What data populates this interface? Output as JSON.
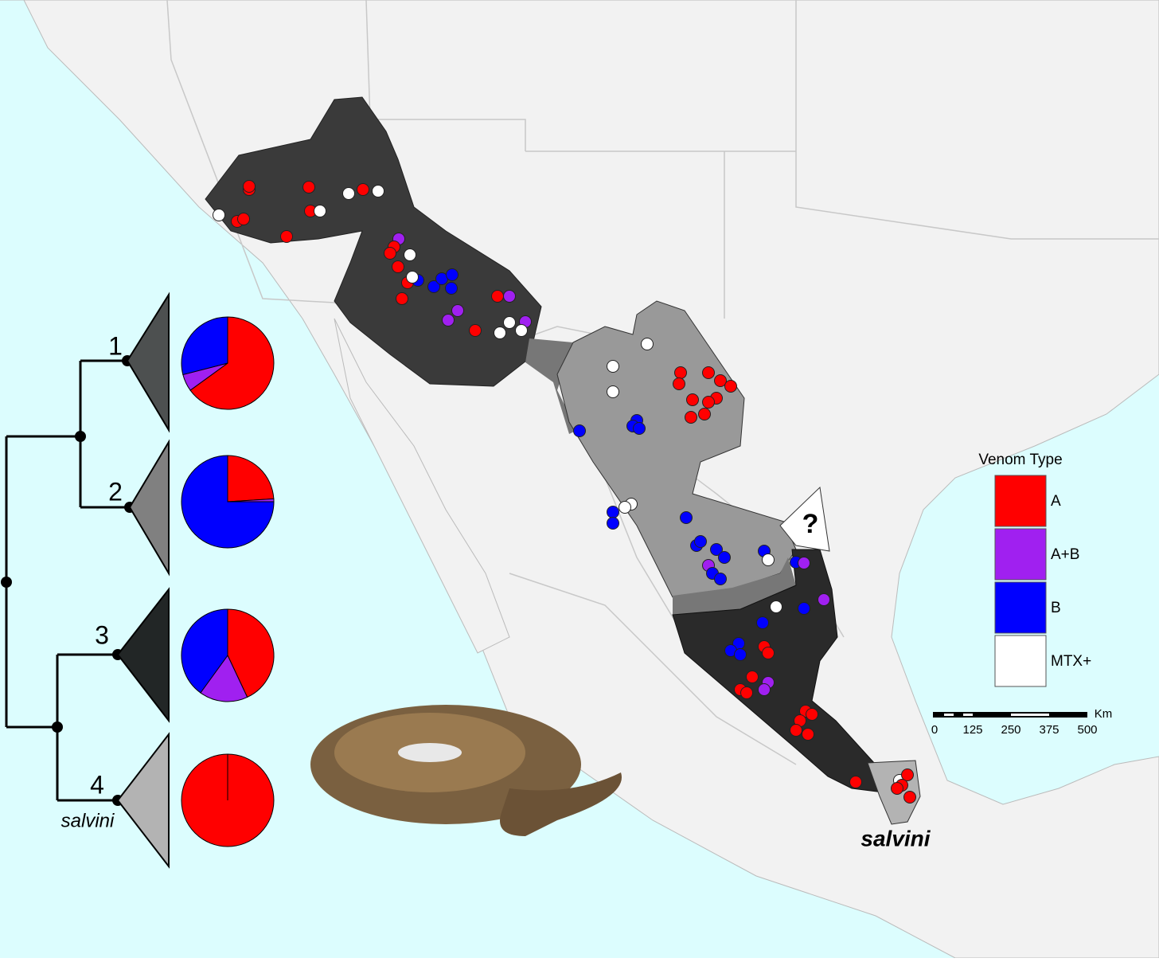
{
  "clades": [
    {
      "label": "1",
      "venom_shares": [
        65,
        6,
        29,
        0
      ]
    },
    {
      "label": "2",
      "venom_shares": [
        24,
        1,
        75,
        0
      ]
    },
    {
      "label": "3",
      "venom_shares": [
        43,
        17,
        40,
        0
      ]
    },
    {
      "label": "4",
      "sublabel": "salvini",
      "venom_shares": [
        100,
        0,
        0,
        0
      ]
    }
  ],
  "map": {
    "unknown_marker": "?",
    "region_label": "salvini"
  },
  "legend": {
    "title": "Venom Type",
    "items": [
      {
        "label": "A",
        "color": "#ff0000"
      },
      {
        "label": "A+B",
        "color": "#a020f0"
      },
      {
        "label": "B",
        "color": "#0000ff"
      },
      {
        "label": "MTX+",
        "color": "#ffffff"
      }
    ]
  },
  "scale": {
    "unit": "Km",
    "ticks": [
      0,
      125,
      250,
      375,
      500
    ]
  }
}
